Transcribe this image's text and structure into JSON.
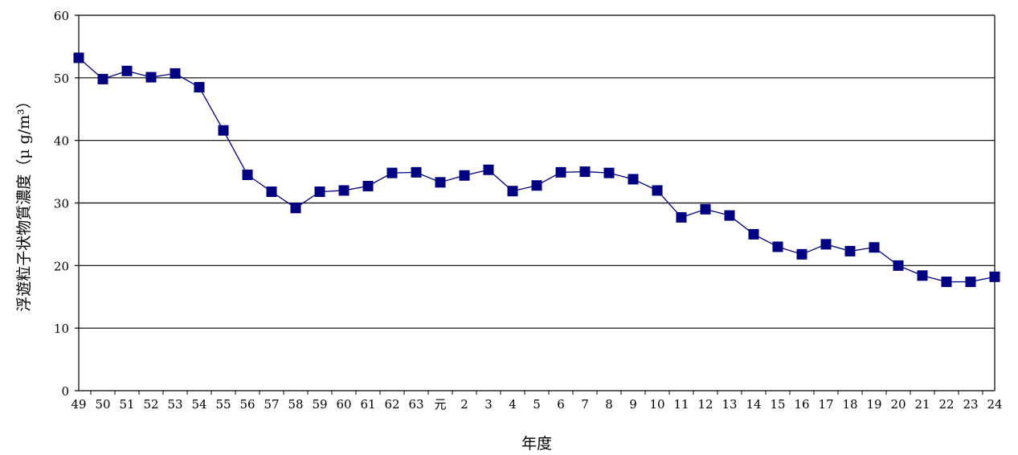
{
  "chart_data": {
    "type": "line",
    "xlabel": "年度",
    "ylabel": "浮遊粒子状物質濃度（μ g/m³）",
    "ylim": [
      0,
      60
    ],
    "yticks": [
      "0",
      "10",
      "20",
      "30",
      "40",
      "50",
      "60"
    ],
    "grid": "horizontal",
    "categories": [
      "49",
      "50",
      "51",
      "52",
      "53",
      "54",
      "55",
      "56",
      "57",
      "58",
      "59",
      "60",
      "61",
      "62",
      "63",
      "元",
      "2",
      "3",
      "4",
      "5",
      "6",
      "7",
      "8",
      "9",
      "10",
      "11",
      "12",
      "13",
      "14",
      "15",
      "16",
      "17",
      "18",
      "19",
      "20",
      "21",
      "22",
      "23",
      "24"
    ],
    "series": [
      {
        "values": [
          53.2,
          49.8,
          51.1,
          50.1,
          50.7,
          48.5,
          41.6,
          34.5,
          31.8,
          29.2,
          31.8,
          32.0,
          32.7,
          34.8,
          34.9,
          33.3,
          34.4,
          35.3,
          31.9,
          32.8,
          34.9,
          35.0,
          34.8,
          33.8,
          32.0,
          27.7,
          29.0,
          28.0,
          25.0,
          23.0,
          21.8,
          23.4,
          22.3,
          22.9,
          20.0,
          18.4,
          17.4,
          17.4,
          18.2
        ]
      }
    ],
    "colors": {
      "line": "#000080",
      "marker": "#000080",
      "grid": "#000000",
      "axis": "#000000"
    },
    "marker": "square"
  }
}
